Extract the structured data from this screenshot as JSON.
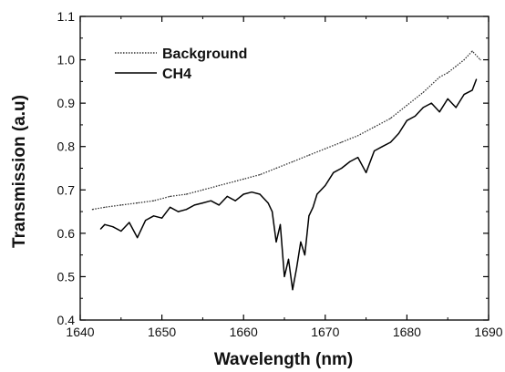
{
  "chart_data": {
    "type": "line",
    "xlabel": "Wavelength (nm)",
    "ylabel": "Transmission (a.u)",
    "xlim": [
      1640,
      1690
    ],
    "ylim": [
      0.4,
      1.1
    ],
    "xticks": [
      1640,
      1650,
      1660,
      1670,
      1680,
      1690
    ],
    "yticks": [
      0.4,
      0.5,
      0.6,
      0.7,
      0.8,
      0.9,
      1.0,
      1.1
    ],
    "xtick_labels": [
      "1640",
      "1650",
      "1660",
      "1670",
      "1680",
      "1690"
    ],
    "ytick_labels": [
      "0.4",
      "0.5",
      "0.6",
      "0.7",
      "0.8",
      "0.9",
      "1.0",
      "1.1"
    ],
    "grid": false,
    "legend_position": "top-left",
    "series": [
      {
        "name": "Background",
        "style": "dotted",
        "color": "#333333",
        "x": [
          1641.5,
          1643,
          1645,
          1647,
          1649,
          1651,
          1653,
          1655,
          1657,
          1659,
          1660,
          1662,
          1664,
          1666,
          1668,
          1670,
          1672,
          1674,
          1676,
          1678,
          1680,
          1682,
          1684,
          1685,
          1686,
          1687,
          1688,
          1689
        ],
        "y": [
          0.655,
          0.66,
          0.665,
          0.67,
          0.675,
          0.685,
          0.69,
          0.7,
          0.71,
          0.72,
          0.725,
          0.735,
          0.75,
          0.765,
          0.78,
          0.795,
          0.81,
          0.825,
          0.845,
          0.865,
          0.895,
          0.925,
          0.96,
          0.97,
          0.985,
          1.0,
          1.02,
          1.0
        ]
      },
      {
        "name": "CH4",
        "style": "solid",
        "color": "#000000",
        "x": [
          1642.5,
          1643,
          1644,
          1645,
          1646,
          1647,
          1648,
          1649,
          1650,
          1651,
          1652,
          1653,
          1654,
          1655,
          1656,
          1657,
          1658,
          1659,
          1660,
          1661,
          1662,
          1663,
          1663.5,
          1664,
          1664.5,
          1665,
          1665.5,
          1666,
          1666.5,
          1667,
          1667.5,
          1668,
          1668.5,
          1669,
          1670,
          1671,
          1672,
          1673,
          1674,
          1675,
          1676,
          1677,
          1678,
          1679,
          1680,
          1681,
          1682,
          1683,
          1684,
          1685,
          1686,
          1687,
          1688,
          1688.5
        ],
        "y": [
          0.61,
          0.62,
          0.615,
          0.605,
          0.625,
          0.59,
          0.63,
          0.64,
          0.635,
          0.66,
          0.65,
          0.655,
          0.665,
          0.67,
          0.675,
          0.665,
          0.685,
          0.675,
          0.69,
          0.695,
          0.69,
          0.67,
          0.65,
          0.58,
          0.62,
          0.5,
          0.54,
          0.47,
          0.52,
          0.58,
          0.55,
          0.64,
          0.66,
          0.69,
          0.71,
          0.74,
          0.75,
          0.765,
          0.775,
          0.74,
          0.79,
          0.8,
          0.81,
          0.83,
          0.86,
          0.87,
          0.89,
          0.9,
          0.88,
          0.91,
          0.89,
          0.92,
          0.93,
          0.955
        ]
      }
    ]
  }
}
